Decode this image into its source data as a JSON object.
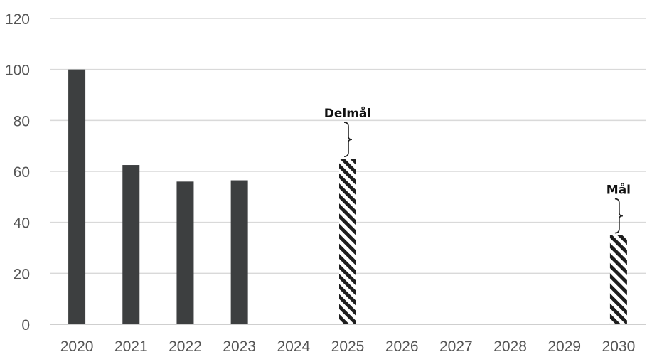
{
  "chart_data": {
    "type": "bar",
    "categories": [
      "2020",
      "2021",
      "2022",
      "2023",
      "2024",
      "2025",
      "2026",
      "2027",
      "2028",
      "2029",
      "2030"
    ],
    "series": [
      {
        "values": [
          100,
          62.5,
          56,
          56.5,
          null,
          null,
          null,
          null,
          null,
          null,
          null
        ],
        "style": "solid"
      },
      {
        "values": [
          null,
          null,
          null,
          null,
          null,
          65,
          null,
          null,
          null,
          null,
          35
        ],
        "style": "hatched"
      }
    ],
    "yticks": [
      "0",
      "20",
      "40",
      "60",
      "80",
      "100",
      "120"
    ],
    "ylim": [
      0,
      120
    ],
    "grid": true,
    "legend": "none",
    "annotations": [
      {
        "category": "2025",
        "text": "Delmål"
      },
      {
        "category": "2030",
        "text": "Mål"
      }
    ],
    "title": "",
    "xlabel": "",
    "ylabel": "",
    "colors": {
      "bar": "#3d3f40",
      "hatch": "#1e1e1e",
      "grid": "#d9d9d9",
      "axis": "#bfbfbf",
      "text": "#555555"
    }
  }
}
